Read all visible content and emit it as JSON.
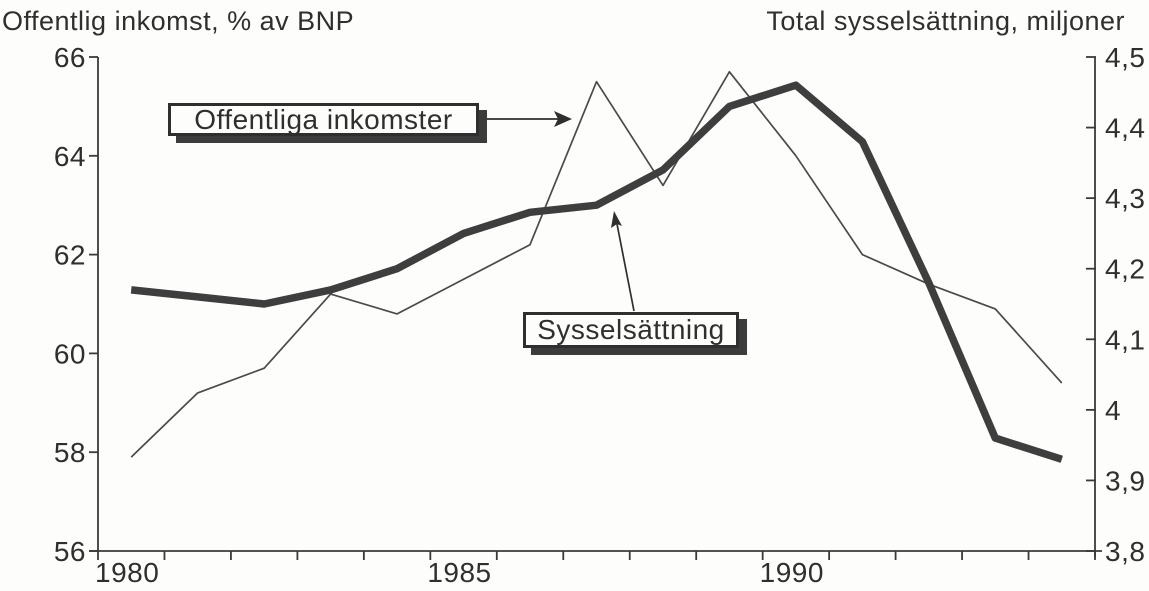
{
  "titles": {
    "left_axis_title": "Offentlig inkomst, % av BNP",
    "right_axis_title": "Total sysselsättning, miljoner"
  },
  "annotations": {
    "income_label": "Offentliga inkomster",
    "employment_label": "Sysselsättning"
  },
  "colors": {
    "background": "#fdfdfb",
    "ink": "#2f2f2f",
    "axis": "#3a3a3a",
    "thin_line": "#4a4a4a",
    "thick_line": "#3e3e3e",
    "callout_shadow": "#3c3c3c"
  },
  "chart_data": {
    "type": "line",
    "title": "",
    "grid": false,
    "legend_position": "annotated callout boxes with arrows",
    "x": [
      1980,
      1981,
      1982,
      1983,
      1984,
      1985,
      1986,
      1987,
      1988,
      1989,
      1990,
      1991,
      1992,
      1993,
      1994
    ],
    "x_axis": {
      "tick_years_start": 1980,
      "tick_years_end": 1995,
      "labeled_ticks": [
        1980,
        1985,
        1990
      ],
      "labeled_tick_labels": [
        "1980",
        "1985",
        "1990"
      ]
    },
    "left_axis": {
      "label": "Offentlig inkomst, % av BNP",
      "min": 56,
      "max": 66,
      "tick_values": [
        66,
        64,
        62,
        60,
        58,
        56
      ],
      "tick_labels": [
        "66",
        "64",
        "62",
        "60",
        "58",
        "56"
      ]
    },
    "right_axis": {
      "label": "Total sysselsättning, miljoner",
      "min": 3.8,
      "max": 4.5,
      "tick_values": [
        4.5,
        4.4,
        4.3,
        4.2,
        4.1,
        4.0,
        3.9,
        3.8
      ],
      "tick_labels": [
        "4,5",
        "4,4",
        "4,3",
        "4,2",
        "4,1",
        "4",
        "3,9",
        "3,8"
      ]
    },
    "series": [
      {
        "name": "Offentliga inkomster",
        "axis": "left",
        "style": "thin",
        "values": [
          57.9,
          59.2,
          59.7,
          61.2,
          60.8,
          61.5,
          62.2,
          65.5,
          63.4,
          65.7,
          64.0,
          62.0,
          61.4,
          60.9,
          59.4
        ]
      },
      {
        "name": "Sysselsättning",
        "axis": "right",
        "style": "thick",
        "values": [
          4.17,
          4.16,
          4.15,
          4.17,
          4.2,
          4.25,
          4.28,
          4.29,
          4.34,
          4.43,
          4.46,
          4.38,
          4.18,
          3.96,
          3.93
        ]
      }
    ]
  }
}
